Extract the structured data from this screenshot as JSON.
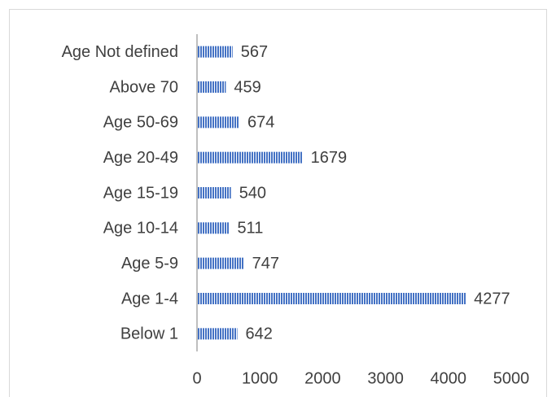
{
  "chart_data": {
    "type": "hbar",
    "categories": [
      "Age Not defined",
      "Above 70",
      "Age 50-69",
      "Age 20-49",
      "Age 15-19",
      "Age 10-14",
      "Age 5-9",
      "Age 1-4",
      "Below 1"
    ],
    "values": [
      567,
      459,
      674,
      1679,
      540,
      511,
      747,
      4277,
      642
    ],
    "color": "#4472c4",
    "xlim": [
      0,
      5000
    ],
    "xticks": [
      0,
      1000,
      2000,
      3000,
      4000,
      5000
    ],
    "grid": false
  }
}
